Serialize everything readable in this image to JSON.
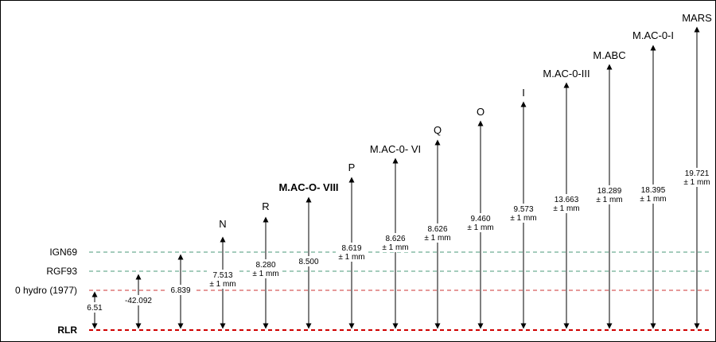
{
  "references": [
    {
      "key": "rlr",
      "label": "RLR",
      "bold": true,
      "color": "#d00000"
    },
    {
      "key": "hydro",
      "label": "0 hydro (1977)",
      "bold": false,
      "color": "#cc3333"
    },
    {
      "key": "rgf93",
      "label": "RGF93",
      "bold": false,
      "color": "#4a9a78"
    },
    {
      "key": "ign69",
      "label": "IGN69",
      "bold": false,
      "color": "#4a9a78"
    }
  ],
  "markers": [
    {
      "name": "",
      "bold": false,
      "value": "6.51",
      "tolerance": "",
      "ref": "rlr"
    },
    {
      "name": "",
      "bold": false,
      "value": "-42.092",
      "tolerance": "",
      "ref": "rlr"
    },
    {
      "name": "",
      "bold": false,
      "value": "6.839",
      "tolerance": "",
      "ref": "rlr"
    },
    {
      "name": "N",
      "bold": false,
      "value": "7.513",
      "tolerance": "± 1 mm",
      "ref": "rlr"
    },
    {
      "name": "R",
      "bold": false,
      "value": "8.280",
      "tolerance": "± 1 mm",
      "ref": "rlr"
    },
    {
      "name": "M.AC-O- VIII",
      "bold": true,
      "value": "8.500",
      "tolerance": "",
      "ref": "rlr"
    },
    {
      "name": "P",
      "bold": false,
      "value": "8.619",
      "tolerance": "± 1 mm",
      "ref": "rlr"
    },
    {
      "name": "M.AC-0- VI",
      "bold": false,
      "value": "8.626",
      "tolerance": "± 1 mm",
      "ref": "rlr"
    },
    {
      "name": "Q",
      "bold": false,
      "value": "8.626",
      "tolerance": "± 1 mm",
      "ref": "rlr"
    },
    {
      "name": "O",
      "bold": false,
      "value": "9.460",
      "tolerance": "± 1 mm",
      "ref": "rlr"
    },
    {
      "name": "I",
      "bold": false,
      "value": "9.573",
      "tolerance": "± 1 mm",
      "ref": "rlr"
    },
    {
      "name": "M.AC-0-III",
      "bold": false,
      "value": "13.663",
      "tolerance": "± 1 mm",
      "ref": "rlr"
    },
    {
      "name": "M.ABC",
      "bold": false,
      "value": "18.289",
      "tolerance": "± 1 mm",
      "ref": "rlr"
    },
    {
      "name": "M.AC-0-I",
      "bold": false,
      "value": "18.395",
      "tolerance": "± 1 mm",
      "ref": "rlr"
    },
    {
      "name": "MARS",
      "bold": false,
      "value": "19.721",
      "tolerance": "± 1 mm",
      "ref": "rlr"
    }
  ]
}
